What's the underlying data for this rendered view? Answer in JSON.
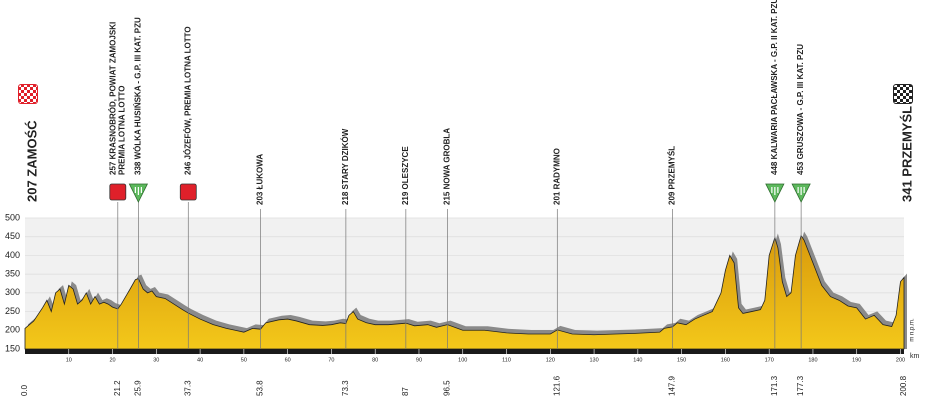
{
  "chart_data": {
    "type": "area",
    "color": "#f3c81a",
    "shadow_color": "#8a8a8a",
    "xlim": [
      0,
      200.8
    ],
    "ylim": [
      150,
      500
    ],
    "yticks": [
      150,
      200,
      250,
      300,
      350,
      400,
      450,
      500
    ],
    "xticks": [
      10,
      20,
      30,
      40,
      50,
      60,
      70,
      80,
      90,
      100,
      110,
      120,
      130,
      140,
      150,
      160,
      170,
      180,
      190,
      200
    ],
    "x_label": "km",
    "y_label": "m n.p.m.",
    "grid": true,
    "start": {
      "label": "207 ZAMOŚĆ",
      "km": {
        "value": 0,
        "label": "0.0"
      },
      "color": "#e0202a"
    },
    "finish": {
      "label": "341 PRZEMYŚL",
      "km": 200.8,
      "color": "#222222"
    },
    "waypoints": [
      {
        "km": 21.2,
        "lines": [
          "257 KRASNOBRÓD, POWIAT ZAMOJSKI",
          "PREMIA LOTNA LOTTO"
        ],
        "marker": "square",
        "color": "#e0202a"
      },
      {
        "km": 25.9,
        "lines": [
          "338 WÓLKA HUSIŃSKA - G.P. III KAT. PZU"
        ],
        "marker": "triangle",
        "color": "#5cb85c"
      },
      {
        "km": 37.3,
        "lines": [
          "246 JÓZEFÓW, PREMIA LOTNA LOTTO"
        ],
        "marker": "square",
        "color": "#e0202a"
      },
      {
        "km": 53.8,
        "lines": [
          "203 ŁUKOWA"
        ]
      },
      {
        "km": 73.3,
        "lines": [
          "218 STARY DZIKÓW"
        ]
      },
      {
        "km": 87.0,
        "lines": [
          "219 OLESZYCE"
        ]
      },
      {
        "km": 96.5,
        "lines": [
          "215 NOWA GROBLA"
        ]
      },
      {
        "km": 121.6,
        "lines": [
          "201 RADYMNO"
        ]
      },
      {
        "km": 147.9,
        "lines": [
          "209 PRZEMYŚL"
        ]
      },
      {
        "km": 171.3,
        "lines": [
          "448 KALWARIA PACŁAWSKA - G.P. II KAT. PZU"
        ],
        "marker": "triangle",
        "color": "#5cb85c"
      },
      {
        "km": 177.3,
        "lines": [
          "453 GRUSZOWA - G.P. III KAT. PZU"
        ],
        "marker": "triangle",
        "color": "#5cb85c"
      }
    ],
    "profile": {
      "km": [
        0,
        2,
        4,
        5,
        6,
        7,
        8,
        9,
        10,
        11,
        12,
        13,
        14,
        15,
        16,
        17,
        18,
        19,
        20,
        21.2,
        22,
        23,
        24,
        25.2,
        25.9,
        27,
        28,
        29,
        30,
        32,
        34,
        36,
        37.3,
        40,
        43,
        46,
        48,
        50,
        52,
        53.8,
        55,
        58,
        60,
        62,
        65,
        68,
        70,
        72,
        73.3,
        74,
        75,
        76,
        78,
        80,
        83,
        87,
        89,
        92,
        94,
        96.5,
        100,
        105,
        110,
        115,
        120,
        121.6,
        125,
        130,
        135,
        140,
        145,
        146,
        147.9,
        149,
        151,
        153,
        155,
        157,
        159,
        160,
        161,
        162,
        163,
        164,
        166,
        168,
        169,
        170,
        171.3,
        172,
        173,
        174,
        175,
        176,
        177.3,
        178,
        180,
        182,
        184,
        186,
        188,
        190,
        192,
        194,
        196,
        198,
        199,
        200,
        200.8
      ],
      "elevation": [
        205,
        225,
        260,
        280,
        250,
        300,
        310,
        270,
        320,
        310,
        270,
        280,
        300,
        270,
        290,
        270,
        275,
        270,
        262,
        257,
        270,
        290,
        310,
        335,
        338,
        310,
        300,
        305,
        290,
        285,
        270,
        255,
        246,
        230,
        215,
        205,
        200,
        195,
        205,
        203,
        220,
        228,
        230,
        225,
        215,
        213,
        215,
        220,
        218,
        240,
        250,
        230,
        220,
        215,
        215,
        219,
        212,
        215,
        208,
        215,
        200,
        200,
        193,
        190,
        190,
        201,
        190,
        188,
        190,
        192,
        195,
        205,
        209,
        220,
        215,
        230,
        240,
        250,
        300,
        360,
        400,
        380,
        260,
        245,
        250,
        255,
        280,
        400,
        448,
        420,
        330,
        290,
        300,
        400,
        453,
        440,
        380,
        320,
        290,
        280,
        265,
        260,
        230,
        240,
        215,
        210,
        240,
        330,
        341
      ]
    }
  }
}
